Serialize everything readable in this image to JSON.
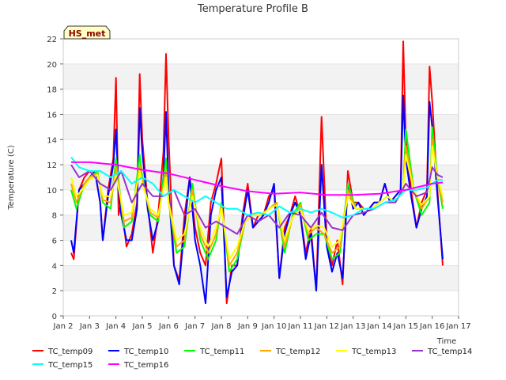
{
  "chart_data": {
    "type": "line",
    "title": "Temperature Profile B",
    "xlabel": "Time",
    "ylabel": "Temperature (C)",
    "annotation": "HS_met",
    "xlim": [
      2.3,
      17
    ],
    "ylim": [
      0,
      22
    ],
    "grid": "horizontal bands",
    "legend_position": "bottom",
    "x_ticks": [
      {
        "value": 2,
        "label": "Jan 2"
      },
      {
        "value": 3,
        "label": "Jan 3"
      },
      {
        "value": 4,
        "label": "Jan 4"
      },
      {
        "value": 5,
        "label": "Jan 5"
      },
      {
        "value": 6,
        "label": "Jan 6"
      },
      {
        "value": 7,
        "label": "Jan 7"
      },
      {
        "value": 8,
        "label": "Jan 8"
      },
      {
        "value": 9,
        "label": "Jan 9"
      },
      {
        "value": 10,
        "label": "Jan 10"
      },
      {
        "value": 11,
        "label": "Jan 11"
      },
      {
        "value": 12,
        "label": "Jan 12"
      },
      {
        "value": 13,
        "label": "Jan 13"
      },
      {
        "value": 14,
        "label": "Jan 14"
      },
      {
        "value": 15,
        "label": "Jan 15"
      },
      {
        "value": 16,
        "label": "Jan 16"
      },
      {
        "value": 17,
        "label": "Jan 17"
      }
    ],
    "y_ticks": [
      0,
      2,
      4,
      6,
      8,
      10,
      12,
      14,
      16,
      18,
      20,
      22
    ],
    "series": [
      {
        "name": "TC_temp09",
        "color": "#ff0000",
        "x": [
          2.3,
          2.4,
          2.6,
          2.8,
          3.0,
          3.2,
          3.4,
          3.5,
          3.7,
          3.9,
          4.0,
          4.1,
          4.2,
          4.4,
          4.6,
          4.8,
          4.9,
          5.0,
          5.2,
          5.4,
          5.6,
          5.8,
          5.9,
          6.0,
          6.2,
          6.4,
          6.6,
          6.8,
          7.0,
          7.2,
          7.4,
          7.6,
          7.8,
          8.0,
          8.2,
          8.4,
          8.6,
          8.8,
          9.0,
          9.2,
          9.4,
          9.6,
          9.8,
          10.0,
          10.2,
          10.4,
          10.6,
          10.8,
          11.0,
          11.2,
          11.4,
          11.6,
          11.8,
          12.0,
          12.2,
          12.4,
          12.6,
          12.8,
          13.0,
          13.2,
          13.4,
          13.6,
          13.8,
          14.0,
          14.2,
          14.4,
          14.6,
          14.8,
          14.9,
          15.0,
          15.2,
          15.4,
          15.6,
          15.8,
          15.9,
          16.0,
          16.2,
          16.4
        ],
        "y": [
          5,
          4.5,
          10,
          11,
          11.5,
          11.5,
          9,
          6,
          10,
          12.5,
          18.9,
          8,
          9,
          5.5,
          6.5,
          9,
          19.2,
          14,
          9,
          5,
          8,
          13,
          20.8,
          14,
          4,
          2.8,
          8,
          11,
          7,
          5,
          4,
          9,
          10.5,
          12.5,
          1,
          4,
          4,
          8,
          10.5,
          7,
          8,
          8,
          9.5,
          10,
          3,
          7,
          8,
          9.5,
          8,
          5,
          7,
          2,
          15.8,
          6,
          4,
          6,
          2.5,
          11.5,
          9,
          9,
          8.5,
          8.5,
          9,
          9,
          10.5,
          9,
          9.5,
          10,
          21.8,
          14,
          10,
          7,
          9,
          10,
          19.8,
          17,
          10,
          4
        ]
      },
      {
        "name": "TC_temp10",
        "color": "#0000ff",
        "x": [
          2.3,
          2.4,
          2.6,
          2.8,
          3.0,
          3.2,
          3.4,
          3.5,
          3.7,
          3.9,
          4.0,
          4.1,
          4.2,
          4.4,
          4.6,
          4.8,
          4.9,
          5.0,
          5.2,
          5.4,
          5.6,
          5.8,
          5.9,
          6.0,
          6.2,
          6.4,
          6.6,
          6.8,
          7.0,
          7.2,
          7.4,
          7.6,
          7.8,
          8.0,
          8.2,
          8.4,
          8.6,
          8.8,
          9.0,
          9.2,
          9.4,
          9.6,
          9.8,
          10.0,
          10.2,
          10.4,
          10.6,
          10.8,
          11.0,
          11.2,
          11.4,
          11.6,
          11.8,
          12.0,
          12.2,
          12.4,
          12.6,
          12.8,
          13.0,
          13.2,
          13.4,
          13.6,
          13.8,
          14.0,
          14.2,
          14.4,
          14.6,
          14.8,
          14.9,
          15.0,
          15.2,
          15.4,
          15.6,
          15.8,
          15.9,
          16.0,
          16.2,
          16.4
        ],
        "y": [
          6,
          5,
          10,
          10.5,
          11,
          11.5,
          9,
          6,
          9.5,
          12,
          14.8,
          10,
          8,
          6,
          6,
          8.5,
          16.5,
          13,
          8.5,
          6,
          7.5,
          11,
          16.2,
          10,
          4,
          2.5,
          7,
          11,
          6,
          4,
          1,
          8,
          10,
          11,
          1.5,
          3.5,
          4,
          7.5,
          10,
          7,
          7.5,
          8,
          9,
          10.5,
          3,
          6.5,
          8,
          9,
          8,
          4.5,
          6.5,
          2,
          12,
          5.5,
          3.5,
          5,
          3,
          10.5,
          8.5,
          9,
          8,
          8.5,
          9,
          9,
          10.5,
          9,
          9.5,
          10,
          17.5,
          12.5,
          9.5,
          7,
          8.5,
          9.5,
          17,
          15,
          9.5,
          4.5
        ]
      },
      {
        "name": "TC_temp11",
        "color": "#00ff00",
        "x": [
          2.3,
          2.5,
          2.8,
          3.0,
          3.3,
          3.5,
          3.8,
          4.0,
          4.3,
          4.6,
          4.9,
          5.0,
          5.3,
          5.6,
          5.9,
          6.0,
          6.3,
          6.6,
          6.9,
          7.2,
          7.5,
          7.8,
          8.0,
          8.3,
          8.6,
          8.9,
          9.2,
          9.5,
          9.8,
          10.1,
          10.4,
          10.7,
          11.0,
          11.3,
          11.6,
          11.9,
          12.2,
          12.5,
          12.8,
          13.1,
          13.4,
          13.7,
          14.0,
          14.3,
          14.6,
          14.9,
          15.0,
          15.3,
          15.6,
          15.9,
          16.0,
          16.2,
          16.4
        ],
        "y": [
          10,
          8.5,
          10.5,
          11,
          11.5,
          9,
          8.5,
          12.5,
          7,
          7.5,
          12.8,
          11,
          8,
          7.5,
          12.5,
          9,
          5,
          5.5,
          10.5,
          6,
          4.5,
          6,
          9,
          3.5,
          4.5,
          7.5,
          8,
          8,
          8.5,
          9,
          5,
          8,
          9,
          6,
          6.5,
          6.5,
          4.5,
          5,
          10.5,
          8.5,
          8.5,
          8.5,
          9,
          9.5,
          9,
          10,
          14.8,
          10,
          8,
          9,
          15,
          11,
          8.5
        ]
      },
      {
        "name": "TC_temp12",
        "color": "#ffa500",
        "x": [
          2.3,
          2.5,
          2.8,
          3.0,
          3.3,
          3.5,
          3.8,
          4.0,
          4.3,
          4.6,
          4.9,
          5.0,
          5.3,
          5.6,
          5.9,
          6.0,
          6.3,
          6.6,
          6.9,
          7.2,
          7.5,
          7.8,
          8.0,
          8.3,
          8.6,
          8.9,
          9.2,
          9.5,
          9.8,
          10.1,
          10.4,
          10.7,
          11.0,
          11.3,
          11.6,
          11.9,
          12.2,
          12.5,
          12.8,
          13.1,
          13.4,
          13.7,
          14.0,
          14.3,
          14.6,
          14.9,
          15.0,
          15.3,
          15.6,
          15.9,
          16.0,
          16.2,
          16.4
        ],
        "y": [
          10.5,
          9,
          10.5,
          11,
          11.3,
          9.2,
          9,
          11.8,
          7.5,
          7.8,
          12,
          10.8,
          8.2,
          7.8,
          11.5,
          9,
          5.5,
          6,
          10,
          6.5,
          5,
          6.5,
          8.8,
          4,
          5,
          7.5,
          8,
          8,
          8.5,
          9,
          5.5,
          7.8,
          8.8,
          6.5,
          7,
          6.5,
          5,
          5.5,
          10,
          8.5,
          8.5,
          8.5,
          9,
          9.5,
          9,
          10,
          13.5,
          10,
          8.5,
          9.5,
          14,
          11,
          9
        ]
      },
      {
        "name": "TC_temp13",
        "color": "#ffff00",
        "x": [
          2.3,
          2.5,
          2.8,
          3.0,
          3.3,
          3.5,
          3.8,
          4.0,
          4.3,
          4.6,
          4.9,
          5.0,
          5.3,
          5.6,
          5.9,
          6.0,
          6.3,
          6.6,
          6.9,
          7.2,
          7.5,
          7.8,
          8.0,
          8.3,
          8.6,
          8.9,
          9.2,
          9.5,
          9.8,
          10.1,
          10.4,
          10.7,
          11.0,
          11.3,
          11.6,
          11.9,
          12.2,
          12.5,
          12.8,
          13.1,
          13.4,
          13.7,
          14.0,
          14.3,
          14.6,
          14.9,
          15.0,
          15.3,
          15.6,
          15.9,
          16.0,
          16.2,
          16.4
        ],
        "y": [
          11,
          9.5,
          10.2,
          10.8,
          11.2,
          9.5,
          9.5,
          11.2,
          8,
          8.2,
          11.5,
          10.5,
          8.5,
          8,
          11,
          9,
          6,
          6.5,
          9.5,
          7,
          5.5,
          7,
          8.5,
          4.5,
          5.5,
          7.5,
          8,
          8,
          8.5,
          8.8,
          6,
          7.8,
          8.5,
          6.8,
          7.2,
          7,
          5.5,
          6,
          9.5,
          8.5,
          8.5,
          8.5,
          9,
          9.5,
          9,
          10,
          12.8,
          10,
          8.8,
          9.5,
          13.5,
          11,
          9.5
        ]
      },
      {
        "name": "TC_temp14",
        "color": "#9932cc",
        "x": [
          2.3,
          2.6,
          3.0,
          3.4,
          3.8,
          4.2,
          4.6,
          5.0,
          5.4,
          5.8,
          6.2,
          6.6,
          7.0,
          7.4,
          7.8,
          8.2,
          8.6,
          9.0,
          9.4,
          9.8,
          10.2,
          10.6,
          11.0,
          11.4,
          11.8,
          12.2,
          12.6,
          13.0,
          13.4,
          13.8,
          14.2,
          14.6,
          15.0,
          15.4,
          15.8,
          16.0,
          16.2,
          16.4
        ],
        "y": [
          12,
          11,
          11.5,
          10.5,
          10,
          11.5,
          9,
          10.5,
          9.5,
          9.5,
          10,
          8,
          8.5,
          7,
          7.5,
          7,
          6.5,
          8,
          7.5,
          8,
          7,
          8.2,
          8,
          7,
          8.2,
          7,
          6.8,
          8,
          8.2,
          8.5,
          9,
          9,
          10.5,
          9.5,
          9.8,
          11.8,
          11.2,
          11
        ]
      },
      {
        "name": "TC_temp15",
        "color": "#00ffff",
        "x": [
          2.3,
          2.6,
          3.0,
          3.4,
          3.8,
          4.2,
          4.6,
          5.0,
          5.4,
          5.8,
          6.2,
          6.6,
          7.0,
          7.4,
          7.8,
          8.2,
          8.6,
          9.0,
          9.4,
          9.8,
          10.2,
          10.6,
          11.0,
          11.4,
          11.8,
          12.2,
          12.6,
          13.0,
          13.4,
          13.8,
          14.2,
          14.6,
          15.0,
          15.4,
          15.8,
          16.0,
          16.2,
          16.4
        ],
        "y": [
          12.6,
          11.8,
          11.5,
          11.5,
          11,
          11.5,
          10.5,
          11,
          10.5,
          9.5,
          10,
          9.5,
          9,
          9.5,
          9,
          8.5,
          8.5,
          8,
          8.2,
          8,
          8.7,
          8.2,
          8.5,
          8.2,
          8.5,
          8.2,
          7.8,
          8,
          8.5,
          8.5,
          9,
          9.2,
          10,
          10,
          10.2,
          10.5,
          10.8,
          10.8
        ]
      },
      {
        "name": "TC_temp16",
        "color": "#ff00ff",
        "x": [
          2.3,
          3.0,
          4.0,
          5.0,
          6.0,
          7.0,
          8.0,
          9.0,
          10.0,
          11.0,
          12.0,
          13.0,
          14.0,
          15.0,
          16.0,
          16.4
        ],
        "y": [
          12.2,
          12.2,
          12,
          11.6,
          11.3,
          10.8,
          10.3,
          9.9,
          9.7,
          9.8,
          9.6,
          9.6,
          9.7,
          10,
          10.5,
          10.6
        ]
      }
    ]
  }
}
